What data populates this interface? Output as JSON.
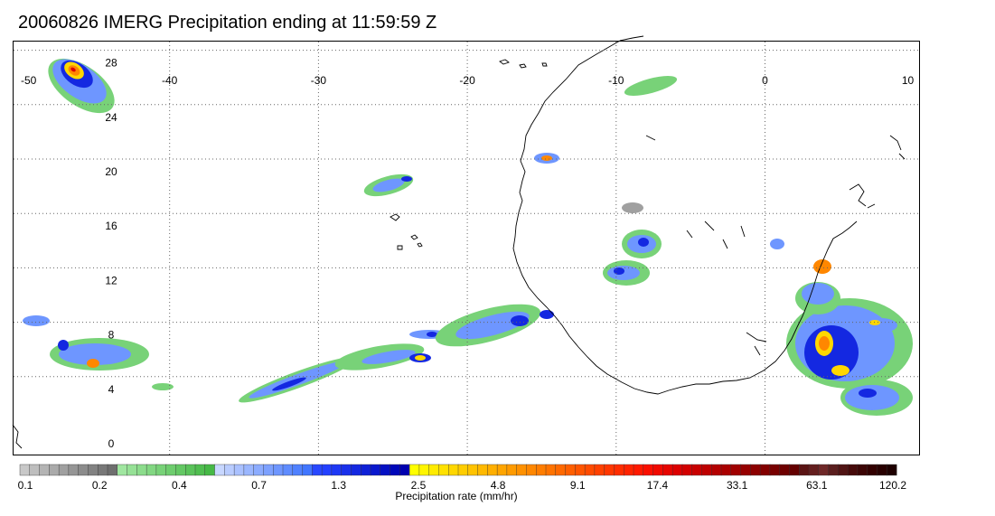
{
  "title": "20060826 IMERG Precipitation ending at 11:59:59 Z",
  "map": {
    "lon_ticks": [
      "-50",
      "-40",
      "-30",
      "-20",
      "-10",
      "0",
      "10"
    ],
    "lat_ticks": [
      "28",
      "24",
      "20",
      "16",
      "12",
      "8",
      "4",
      "0"
    ],
    "lon_range": [
      -50,
      10
    ],
    "lat_range": [
      -0.5,
      29.5
    ],
    "grid": "dotted",
    "coastline_color": "#000000"
  },
  "colorbar": {
    "title": "Precipitation rate (mm/hr)",
    "labels": [
      "0.1",
      "0.2",
      "0.4",
      "0.7",
      "1.3",
      "2.5",
      "4.8",
      "9.1",
      "17.4",
      "33.1",
      "63.1",
      "120.2"
    ],
    "colors": [
      "#c8c8c8",
      "#bebebe",
      "#b4b4b4",
      "#aaaaaa",
      "#a0a0a0",
      "#969696",
      "#8c8c8c",
      "#828282",
      "#787878",
      "#6e6e6e",
      "#a0e6a0",
      "#96e196",
      "#8cdc8c",
      "#82d782",
      "#78d278",
      "#6ecd6e",
      "#64c864",
      "#5ac35a",
      "#50be50",
      "#46b946",
      "#c8d7ff",
      "#b9ccff",
      "#aac1ff",
      "#9bb7ff",
      "#8cacff",
      "#7da1ff",
      "#6e96ff",
      "#5f8cff",
      "#5081ff",
      "#4176ff",
      "#2848ff",
      "#2340ff",
      "#1e38f5",
      "#1930eb",
      "#1428e1",
      "#0f20d7",
      "#0a18cd",
      "#0510c3",
      "#0008b9",
      "#0000af",
      "#ffff00",
      "#fff500",
      "#ffeb00",
      "#ffe100",
      "#ffd700",
      "#ffcd00",
      "#ffc300",
      "#ffb900",
      "#ffaf00",
      "#ffa500",
      "#ff9b00",
      "#ff9100",
      "#ff8700",
      "#ff7d00",
      "#ff7300",
      "#ff6900",
      "#ff5f00",
      "#ff5500",
      "#ff4b00",
      "#ff4100",
      "#ff3700",
      "#ff2d00",
      "#ff2300",
      "#ff1900",
      "#fa0f00",
      "#f00a00",
      "#e60500",
      "#dc0000",
      "#d20000",
      "#c80000",
      "#be0000",
      "#b40000",
      "#aa0000",
      "#a00000",
      "#960000",
      "#8c0000",
      "#820000",
      "#780000",
      "#6e0000",
      "#640000",
      "#5a1414",
      "#641e1e",
      "#6e2828",
      "#5a1e1e",
      "#501414",
      "#460a0a",
      "#3c0505",
      "#320000",
      "#280000",
      "#1e0000"
    ]
  }
}
